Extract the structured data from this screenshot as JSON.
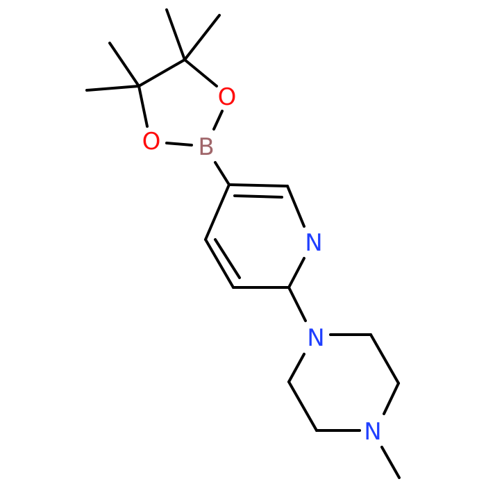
{
  "atoms": {
    "o1": "O",
    "o2": "O",
    "b": "B",
    "n_pyridine": "N",
    "n_piperazine_1": "N",
    "n_piperazine_4": "N"
  }
}
